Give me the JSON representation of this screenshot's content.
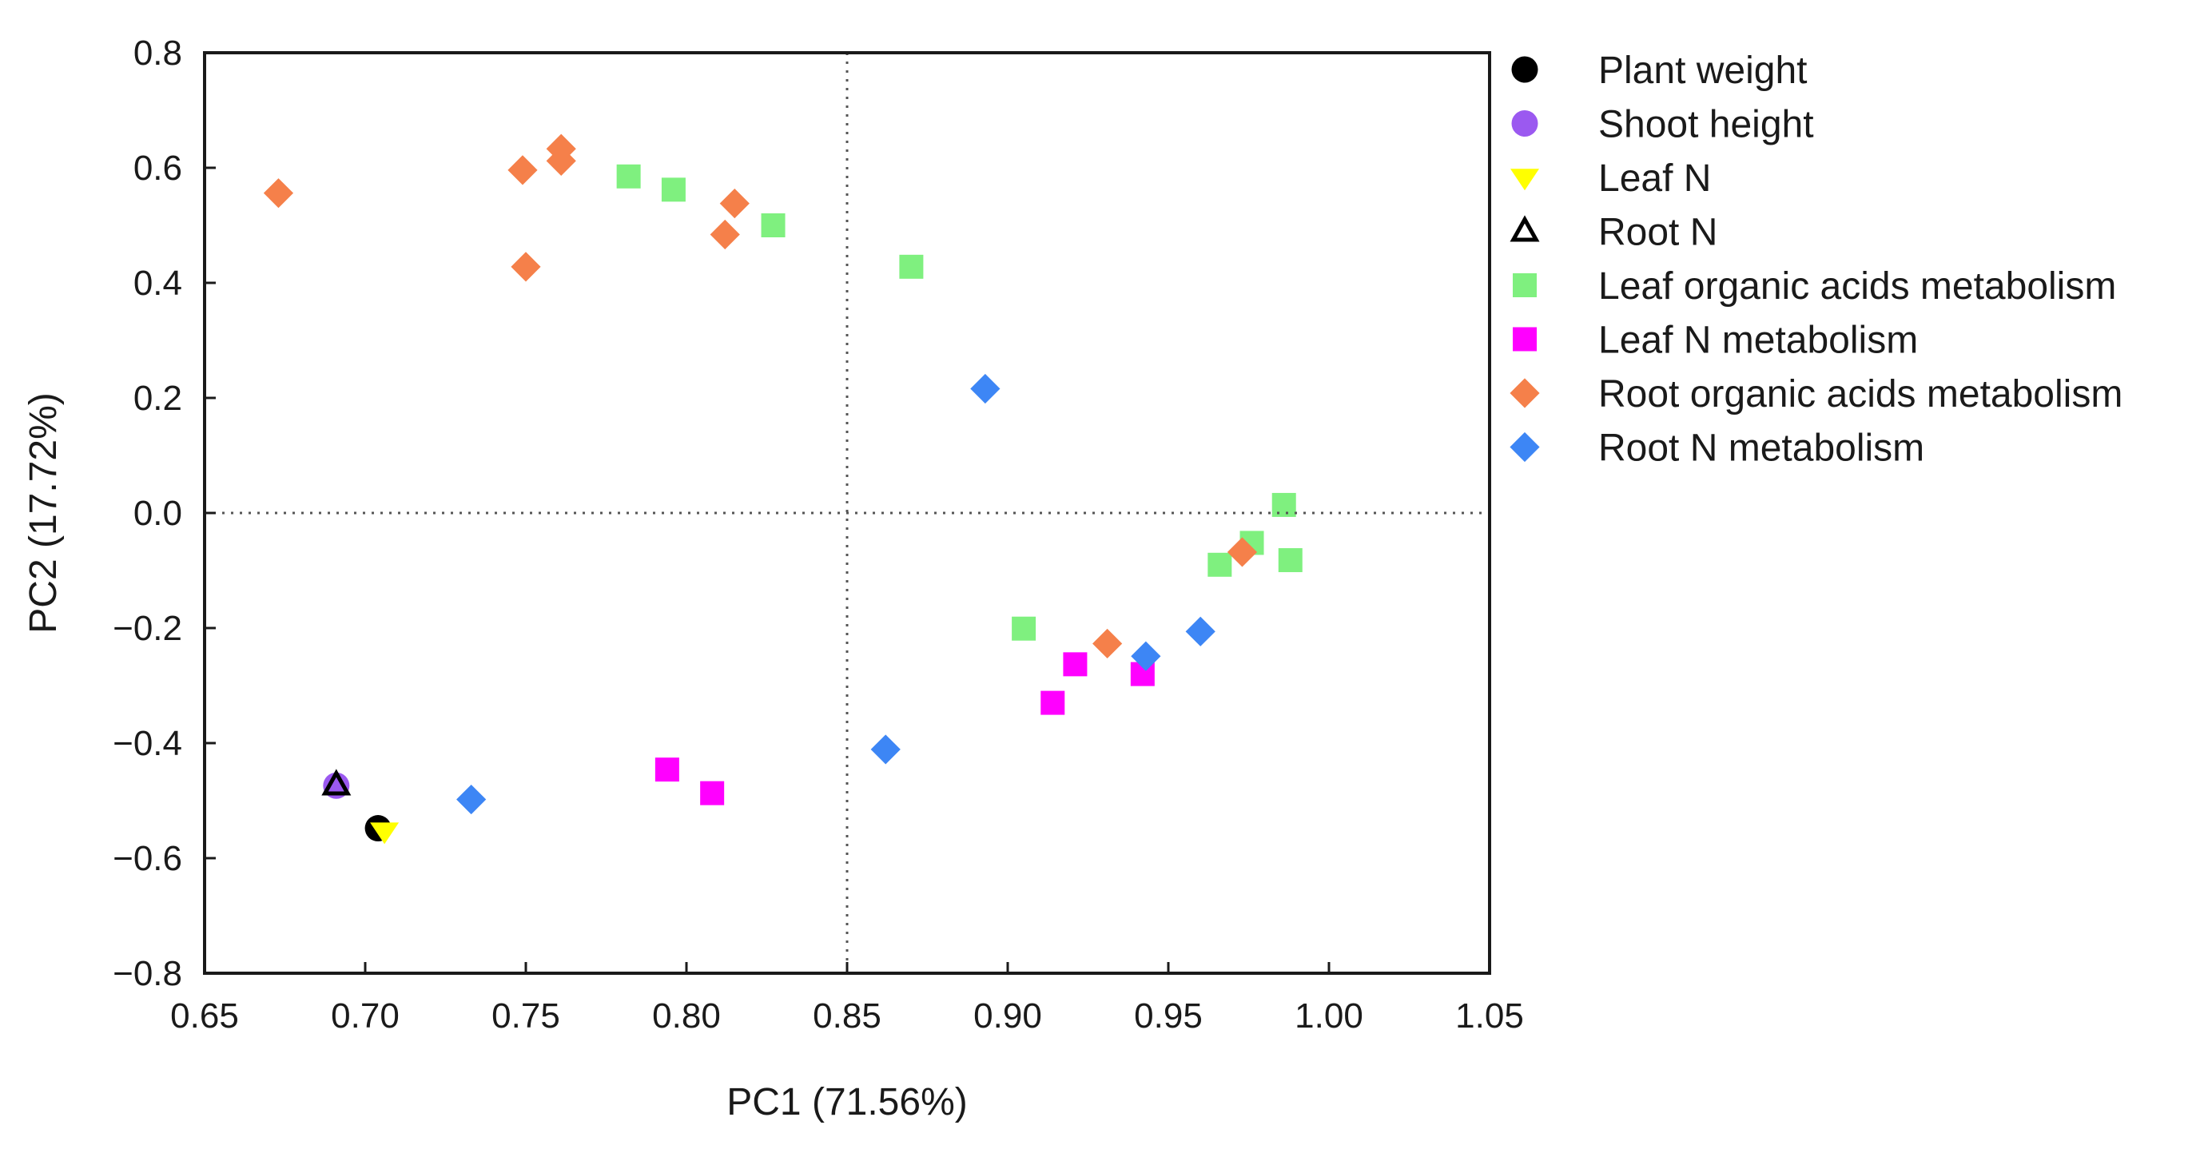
{
  "chart_data": {
    "type": "scatter",
    "title": "",
    "xlabel": "PC1 (71.56%)",
    "ylabel": "PC2 (17.72%)",
    "xlim": [
      0.65,
      1.05
    ],
    "ylim": [
      -0.8,
      0.8
    ],
    "x_ticks": [
      0.65,
      0.7,
      0.75,
      0.8,
      0.85,
      0.9,
      0.95,
      1.0,
      1.05
    ],
    "y_ticks": [
      0.8,
      0.6,
      0.4,
      0.2,
      0.0,
      -0.2,
      -0.4,
      -0.6,
      -0.8
    ],
    "x_tick_labels": [
      "0.65",
      "0.70",
      "0.75",
      "0.80",
      "0.85",
      "0.90",
      "0.95",
      "1.00",
      "1.05"
    ],
    "y_tick_labels": [
      "0.8",
      "0.6",
      "0.4",
      "0.2",
      "0.0",
      "−0.2",
      "−0.4",
      "−0.6",
      "−0.8"
    ],
    "reference_lines": {
      "x": 0.85,
      "y": 0.0
    },
    "grid": false,
    "legend_position": "right-outside",
    "series": [
      {
        "name": "Plant weight",
        "marker": "circle",
        "color": "#000000",
        "points": [
          [
            0.704,
            -0.548
          ]
        ]
      },
      {
        "name": "Shoot height",
        "marker": "circle",
        "color": "#9b59f0",
        "points": [
          [
            0.691,
            -0.474
          ]
        ]
      },
      {
        "name": "Leaf N",
        "marker": "triangle-down",
        "color": "#ffff00",
        "points": [
          [
            0.706,
            -0.553
          ]
        ]
      },
      {
        "name": "Root N",
        "marker": "triangle-open",
        "color": "#000000",
        "points": [
          [
            0.691,
            -0.473
          ]
        ]
      },
      {
        "name": "Leaf organic acids metabolism",
        "marker": "square",
        "color": "#7ff07f",
        "points": [
          [
            0.782,
            0.585
          ],
          [
            0.796,
            0.562
          ],
          [
            0.827,
            0.5
          ],
          [
            0.87,
            0.428
          ],
          [
            0.905,
            -0.201
          ],
          [
            0.966,
            -0.09
          ],
          [
            0.976,
            -0.052
          ],
          [
            0.986,
            0.014
          ],
          [
            0.988,
            -0.082
          ]
        ]
      },
      {
        "name": "Leaf N metabolism",
        "marker": "square",
        "color": "#ff00ff",
        "points": [
          [
            0.794,
            -0.446
          ],
          [
            0.808,
            -0.487
          ],
          [
            0.914,
            -0.33
          ],
          [
            0.921,
            -0.263
          ],
          [
            0.942,
            -0.28
          ]
        ]
      },
      {
        "name": "Root organic acids metabolism",
        "marker": "diamond",
        "color": "#f5804a",
        "points": [
          [
            0.673,
            0.556
          ],
          [
            0.749,
            0.596
          ],
          [
            0.75,
            0.428
          ],
          [
            0.761,
            0.633
          ],
          [
            0.761,
            0.612
          ],
          [
            0.812,
            0.484
          ],
          [
            0.815,
            0.538
          ],
          [
            0.931,
            -0.227
          ],
          [
            0.973,
            -0.068
          ]
        ]
      },
      {
        "name": "Root N metabolism",
        "marker": "diamond",
        "color": "#3d86f5",
        "points": [
          [
            0.733,
            -0.498
          ],
          [
            0.862,
            -0.411
          ],
          [
            0.893,
            0.216
          ],
          [
            0.943,
            -0.249
          ],
          [
            0.96,
            -0.206
          ]
        ]
      }
    ]
  }
}
